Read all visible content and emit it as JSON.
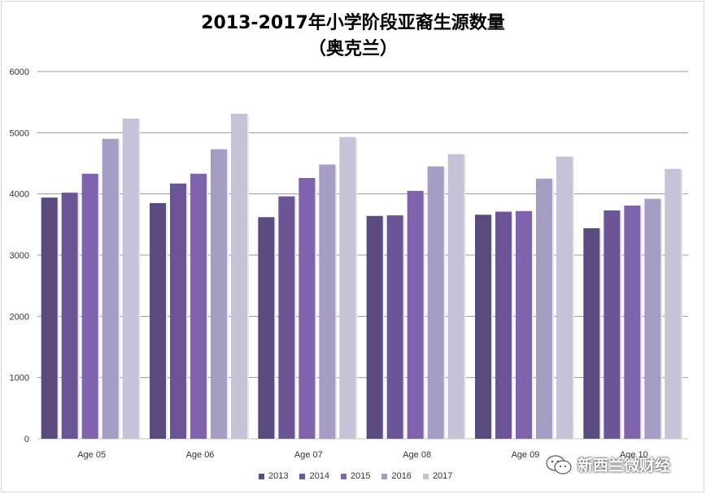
{
  "chart_data": {
    "type": "bar",
    "title": "2013-2017年小学阶段亚裔生源数量",
    "subtitle": "（奥克兰）",
    "categories": [
      "Age 05",
      "Age 06",
      "Age 07",
      "Age 08",
      "Age 09",
      "Age 10"
    ],
    "series": [
      {
        "name": "2013",
        "color": "#5b4a7d",
        "values": [
          3940,
          3850,
          3620,
          3640,
          3660,
          3440
        ]
      },
      {
        "name": "2014",
        "color": "#6c5596",
        "values": [
          4020,
          4170,
          3960,
          3650,
          3710,
          3730
        ]
      },
      {
        "name": "2015",
        "color": "#8063ad",
        "values": [
          4330,
          4330,
          4260,
          4050,
          3720,
          3810
        ]
      },
      {
        "name": "2016",
        "color": "#a79cc4",
        "values": [
          4900,
          4730,
          4480,
          4450,
          4250,
          3920
        ]
      },
      {
        "name": "2017",
        "color": "#c8c2d8",
        "values": [
          5230,
          5310,
          4930,
          4650,
          4610,
          4410
        ]
      }
    ],
    "ylim": [
      0,
      6000
    ],
    "yticks": [
      "0",
      "1000",
      "2000",
      "3000",
      "4000",
      "5000",
      "6000"
    ],
    "grid": true,
    "legend": "bottom"
  },
  "watermark": {
    "text": "新西兰微财经",
    "icon": "wechat-icon"
  }
}
